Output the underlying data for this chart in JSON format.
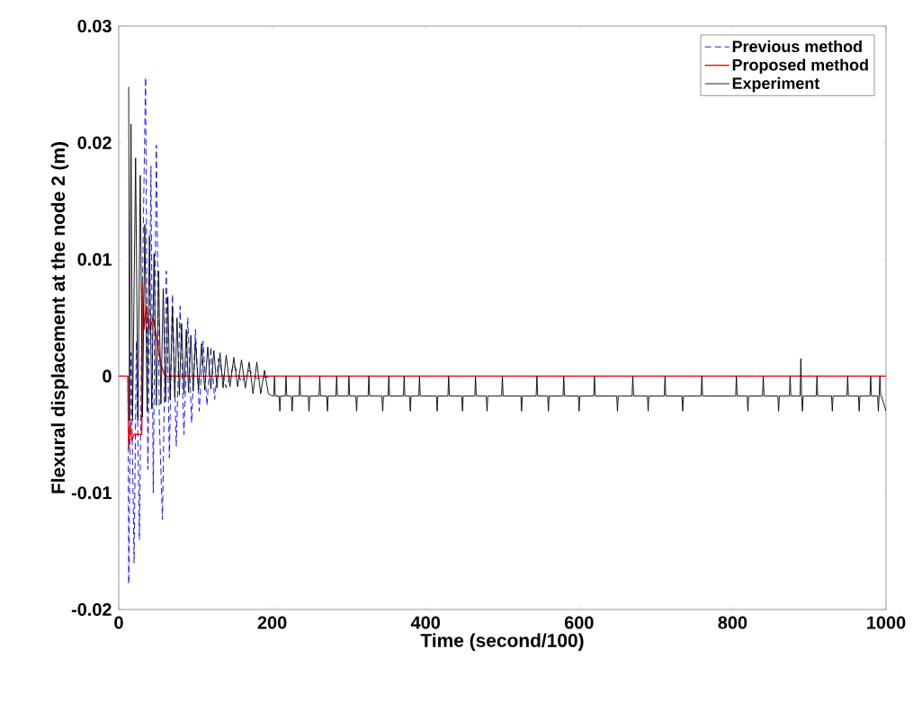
{
  "chart_data": {
    "type": "line",
    "xlabel": "Time (second/100)",
    "ylabel": "Flexural displacement at the node 2 (m)",
    "xlim": [
      0,
      1000
    ],
    "xticks": [
      0,
      200,
      400,
      600,
      800,
      1000
    ],
    "ylim": [
      -0.02,
      0.03
    ],
    "yticks": [
      -0.02,
      -0.01,
      0,
      0.01,
      0.02,
      0.03
    ],
    "legend": "top right",
    "marker": "none",
    "grid": false,
    "series": [
      {
        "name": "Previous method",
        "color": "#0000ff",
        "line_style": "dashed",
        "x": [
          0,
          12,
          13,
          16,
          20,
          23,
          27,
          30,
          35,
          38,
          42,
          45,
          49,
          53,
          57,
          62,
          66,
          70,
          75,
          80,
          85,
          90,
          95,
          100,
          105,
          110,
          115,
          120,
          125,
          130,
          140,
          150,
          160,
          170,
          180,
          200,
          1000
        ],
        "values": [
          0,
          0,
          -0.0178,
          0.002,
          -0.016,
          0.003,
          -0.014,
          0.004,
          0.0256,
          -0.008,
          0.018,
          -0.01,
          0.0198,
          -0.004,
          -0.0123,
          0.009,
          -0.007,
          0.007,
          -0.006,
          0.006,
          -0.005,
          0.005,
          -0.004,
          0.004,
          -0.003,
          0.003,
          -0.0025,
          0.0025,
          -0.002,
          0.0015,
          -0.001,
          0.001,
          -0.0005,
          0.0005,
          -0.0002,
          0,
          0
        ]
      },
      {
        "name": "Proposed method",
        "color": "#ff0000",
        "line_style": "solid",
        "x": [
          0,
          12,
          13,
          15,
          17,
          20,
          30,
          31,
          33,
          36,
          40,
          45,
          50,
          55,
          60,
          70,
          1000
        ],
        "values": [
          0,
          0,
          -0.0062,
          -0.004,
          -0.0055,
          -0.005,
          -0.005,
          0.008,
          0.004,
          0.006,
          0.004,
          0.005,
          0.003,
          0.001,
          0,
          0,
          0
        ]
      },
      {
        "name": "Experiment",
        "color": "#000000",
        "line_style": "solid",
        "x": [
          13,
          14,
          16,
          18,
          22,
          25,
          28,
          31,
          34,
          37,
          40,
          43,
          46,
          49,
          52,
          55,
          58,
          61,
          64,
          67,
          70,
          73,
          76,
          79,
          82,
          85,
          88,
          91,
          94,
          97,
          100,
          104,
          108,
          112,
          116,
          120,
          124,
          128,
          132,
          136,
          140,
          145,
          150,
          155,
          160,
          165,
          170,
          175,
          180,
          185,
          190,
          195,
          200,
          202,
          203,
          204,
          209,
          210,
          211,
          217,
          218,
          219,
          225,
          226,
          227,
          235,
          236,
          237,
          247,
          248,
          249,
          261,
          262,
          263,
          271,
          272,
          273,
          283,
          284,
          285,
          299,
          300,
          301,
          309,
          310,
          311,
          325,
          326,
          327,
          343,
          344,
          345,
          351,
          352,
          353,
          371,
          372,
          373,
          379,
          380,
          381,
          391,
          392,
          393,
          414,
          415,
          416,
          429,
          430,
          431,
          447,
          448,
          449,
          464,
          465,
          466,
          479,
          480,
          481,
          499,
          500,
          501,
          524,
          525,
          526,
          544,
          545,
          546,
          559,
          560,
          561,
          579,
          580,
          581,
          599,
          600,
          601,
          619,
          620,
          621,
          649,
          650,
          651,
          669,
          670,
          671,
          689,
          690,
          691,
          711,
          712,
          713,
          734,
          735,
          736,
          759,
          760,
          761,
          804,
          805,
          806,
          819,
          820,
          821,
          839,
          840,
          841,
          859,
          860,
          861,
          874,
          875,
          876,
          888,
          889,
          890,
          891,
          892,
          909,
          910,
          911,
          929,
          930,
          931,
          949,
          950,
          951,
          964,
          965,
          966,
          979,
          980,
          981,
          989,
          990,
          991,
          992,
          993,
          994,
          1000
        ],
        "values": [
          0.0248,
          -0.0038,
          0.0216,
          -0.0038,
          0.0187,
          -0.0038,
          0.0172,
          -0.0035,
          0.013,
          -0.003,
          0.012,
          -0.0028,
          0.0105,
          -0.0025,
          0.009,
          -0.0024,
          0.0075,
          -0.0022,
          0.0068,
          -0.002,
          0.006,
          -0.0018,
          0.005,
          -0.0016,
          0.0045,
          -0.0015,
          0.004,
          -0.0014,
          0.0035,
          -0.0013,
          0.003,
          -0.0012,
          0.0028,
          -0.0012,
          0.0025,
          -0.0011,
          0.0022,
          -0.001,
          0.002,
          -0.001,
          0.0018,
          -0.0009,
          0.0016,
          -0.0009,
          0.0014,
          -0.001,
          0.0012,
          -0.0015,
          0.0012,
          -0.0015,
          0.0005,
          -0.0015,
          -0.0017,
          -0.0017,
          0,
          -0.0017,
          -0.0017,
          -0.003,
          -0.0017,
          -0.0017,
          0,
          -0.0017,
          -0.0017,
          -0.003,
          -0.0017,
          -0.0017,
          0,
          -0.0017,
          -0.0017,
          -0.003,
          -0.0017,
          -0.0017,
          0,
          -0.0017,
          -0.0017,
          -0.003,
          -0.0017,
          -0.0017,
          0,
          -0.0017,
          -0.0017,
          0,
          -0.0017,
          -0.0017,
          -0.003,
          -0.0017,
          -0.0017,
          0,
          -0.0017,
          -0.0017,
          -0.003,
          -0.0017,
          -0.0017,
          0,
          -0.0017,
          -0.0017,
          0,
          -0.0017,
          -0.0017,
          -0.003,
          -0.0017,
          -0.0017,
          0,
          -0.0017,
          -0.0017,
          -0.003,
          -0.0017,
          -0.0017,
          0,
          -0.0017,
          -0.0017,
          -0.003,
          -0.0017,
          -0.0017,
          0,
          -0.0017,
          -0.0017,
          -0.003,
          -0.0017,
          -0.0017,
          0,
          -0.0017,
          -0.0017,
          -0.003,
          -0.0017,
          -0.0017,
          0,
          -0.0017,
          -0.0017,
          -0.003,
          -0.0017,
          -0.0017,
          0,
          -0.0017,
          -0.0017,
          -0.003,
          -0.0017,
          -0.0017,
          0,
          -0.0017,
          -0.0017,
          -0.003,
          -0.0017,
          -0.0017,
          0,
          -0.0017,
          -0.0017,
          -0.003,
          -0.0017,
          -0.0017,
          0,
          -0.0017,
          -0.0017,
          -0.003,
          -0.0017,
          -0.0017,
          0,
          -0.0017,
          -0.0017,
          0,
          -0.0017,
          -0.0017,
          -0.003,
          -0.0017,
          -0.0017,
          0,
          -0.0017,
          -0.0017,
          -0.003,
          -0.0017,
          -0.0017,
          0,
          -0.0017,
          -0.0017,
          0.0015,
          -0.0017,
          -0.003,
          -0.0017,
          -0.0017,
          0,
          -0.0017,
          -0.0017,
          -0.003,
          -0.0017,
          -0.0017,
          0,
          -0.0017,
          -0.0017,
          -0.003,
          -0.0017,
          -0.0017,
          0,
          -0.0017,
          -0.0017,
          -0.003,
          -0.0017,
          0,
          -0.0017,
          -0.0017,
          -0.003
        ]
      }
    ]
  }
}
